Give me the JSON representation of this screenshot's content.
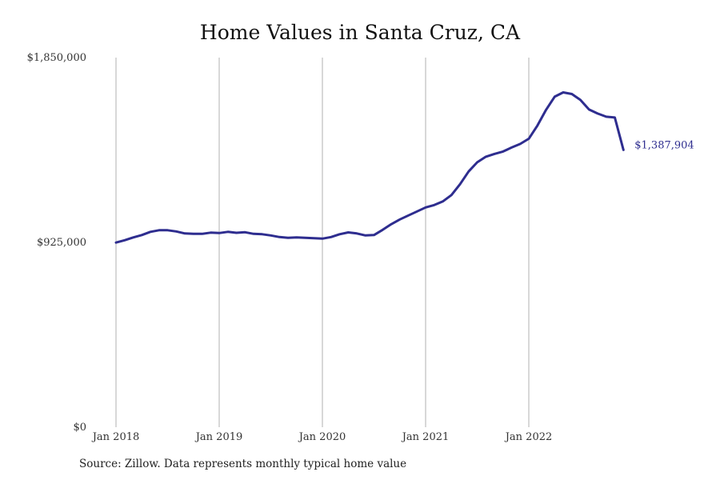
{
  "chart_data": {
    "type": "line",
    "title": "Home Values in Santa Cruz, CA",
    "xlabel": "",
    "ylabel": "",
    "source": "Source: Zillow. Data represents monthly typical home value",
    "y_ticks": [
      {
        "value": 0,
        "label": "$0"
      },
      {
        "value": 925000,
        "label": "$925,000"
      },
      {
        "value": 1850000,
        "label": "$1,850,000"
      }
    ],
    "x_ticks": [
      "Jan 2018",
      "Jan 2019",
      "Jan 2020",
      "Jan 2021",
      "Jan 2022"
    ],
    "ylim": [
      0,
      1850000
    ],
    "grid": "vertical lines at January of each year",
    "line_color": "#2e2d8f",
    "grid_color": "#b0b0b0",
    "end_label": "$1,387,904",
    "series": [
      {
        "name": "",
        "months": [
          "2018-01",
          "2018-02",
          "2018-03",
          "2018-04",
          "2018-05",
          "2018-06",
          "2018-07",
          "2018-08",
          "2018-09",
          "2018-10",
          "2018-11",
          "2018-12",
          "2019-01",
          "2019-02",
          "2019-03",
          "2019-04",
          "2019-05",
          "2019-06",
          "2019-07",
          "2019-08",
          "2019-09",
          "2019-10",
          "2019-11",
          "2019-12",
          "2020-01",
          "2020-02",
          "2020-03",
          "2020-04",
          "2020-05",
          "2020-06",
          "2020-07",
          "2020-08",
          "2020-09",
          "2020-10",
          "2020-11",
          "2020-12",
          "2021-01",
          "2021-02",
          "2021-03",
          "2021-04",
          "2021-05",
          "2021-06",
          "2021-07",
          "2021-08",
          "2021-09",
          "2021-10",
          "2021-11",
          "2021-12",
          "2022-01",
          "2022-02",
          "2022-03",
          "2022-04",
          "2022-05",
          "2022-06",
          "2022-07",
          "2022-08",
          "2022-09",
          "2022-10",
          "2022-11",
          "2022-12"
        ],
        "values": [
          924000,
          936000,
          950000,
          962000,
          978000,
          986000,
          986000,
          980000,
          970000,
          968000,
          968000,
          974000,
          972000,
          978000,
          973000,
          976000,
          968000,
          966000,
          960000,
          952000,
          948000,
          950000,
          948000,
          946000,
          944000,
          952000,
          966000,
          975000,
          970000,
          960000,
          962000,
          988000,
          1016000,
          1040000,
          1060000,
          1080000,
          1100000,
          1112000,
          1130000,
          1162000,
          1216000,
          1280000,
          1326000,
          1354000,
          1368000,
          1380000,
          1400000,
          1418000,
          1444000,
          1510000,
          1588000,
          1654000,
          1676000,
          1668000,
          1638000,
          1590000,
          1570000,
          1554000,
          1550000,
          1387904
        ]
      }
    ]
  }
}
